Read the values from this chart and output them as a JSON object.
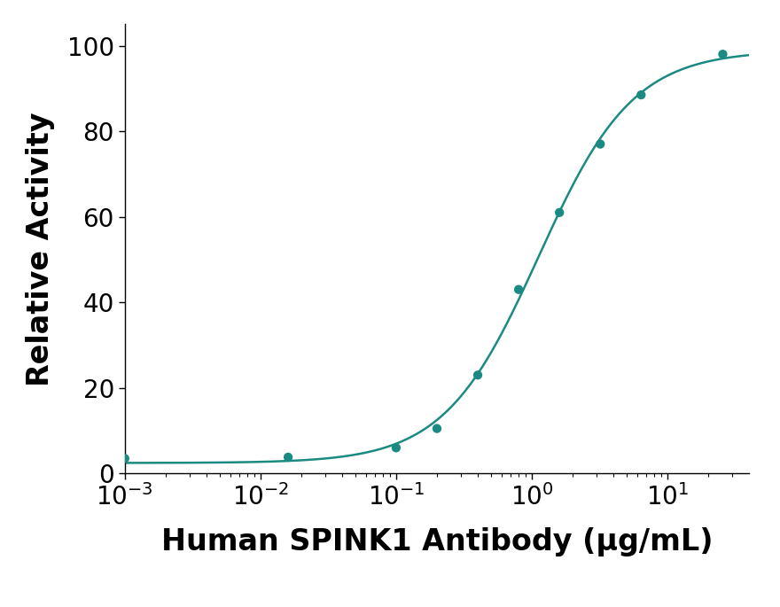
{
  "x_data_points": [
    0.001,
    0.016,
    0.1,
    0.2,
    0.4,
    0.8,
    1.6,
    3.2,
    6.4,
    25.6
  ],
  "y_data_points": [
    3.5,
    3.8,
    6.0,
    10.5,
    23.0,
    43.0,
    61.0,
    77.0,
    88.5,
    98.0
  ],
  "curve_color": "#1b8a82",
  "dot_color": "#1b8a82",
  "xlim_log": [
    -3,
    1.6
  ],
  "ylim": [
    0,
    105
  ],
  "yticks": [
    0,
    20,
    40,
    60,
    80,
    100
  ],
  "xlabel": "Human SPINK1 Antibody (μg/mL)",
  "ylabel": "Relative Activity",
  "background_color": "#ffffff",
  "dot_size": 55,
  "line_width": 1.8,
  "xlabel_fontsize": 24,
  "ylabel_fontsize": 24,
  "tick_fontsize": 20,
  "xlabel_fontweight": "bold",
  "ylabel_fontweight": "bold"
}
